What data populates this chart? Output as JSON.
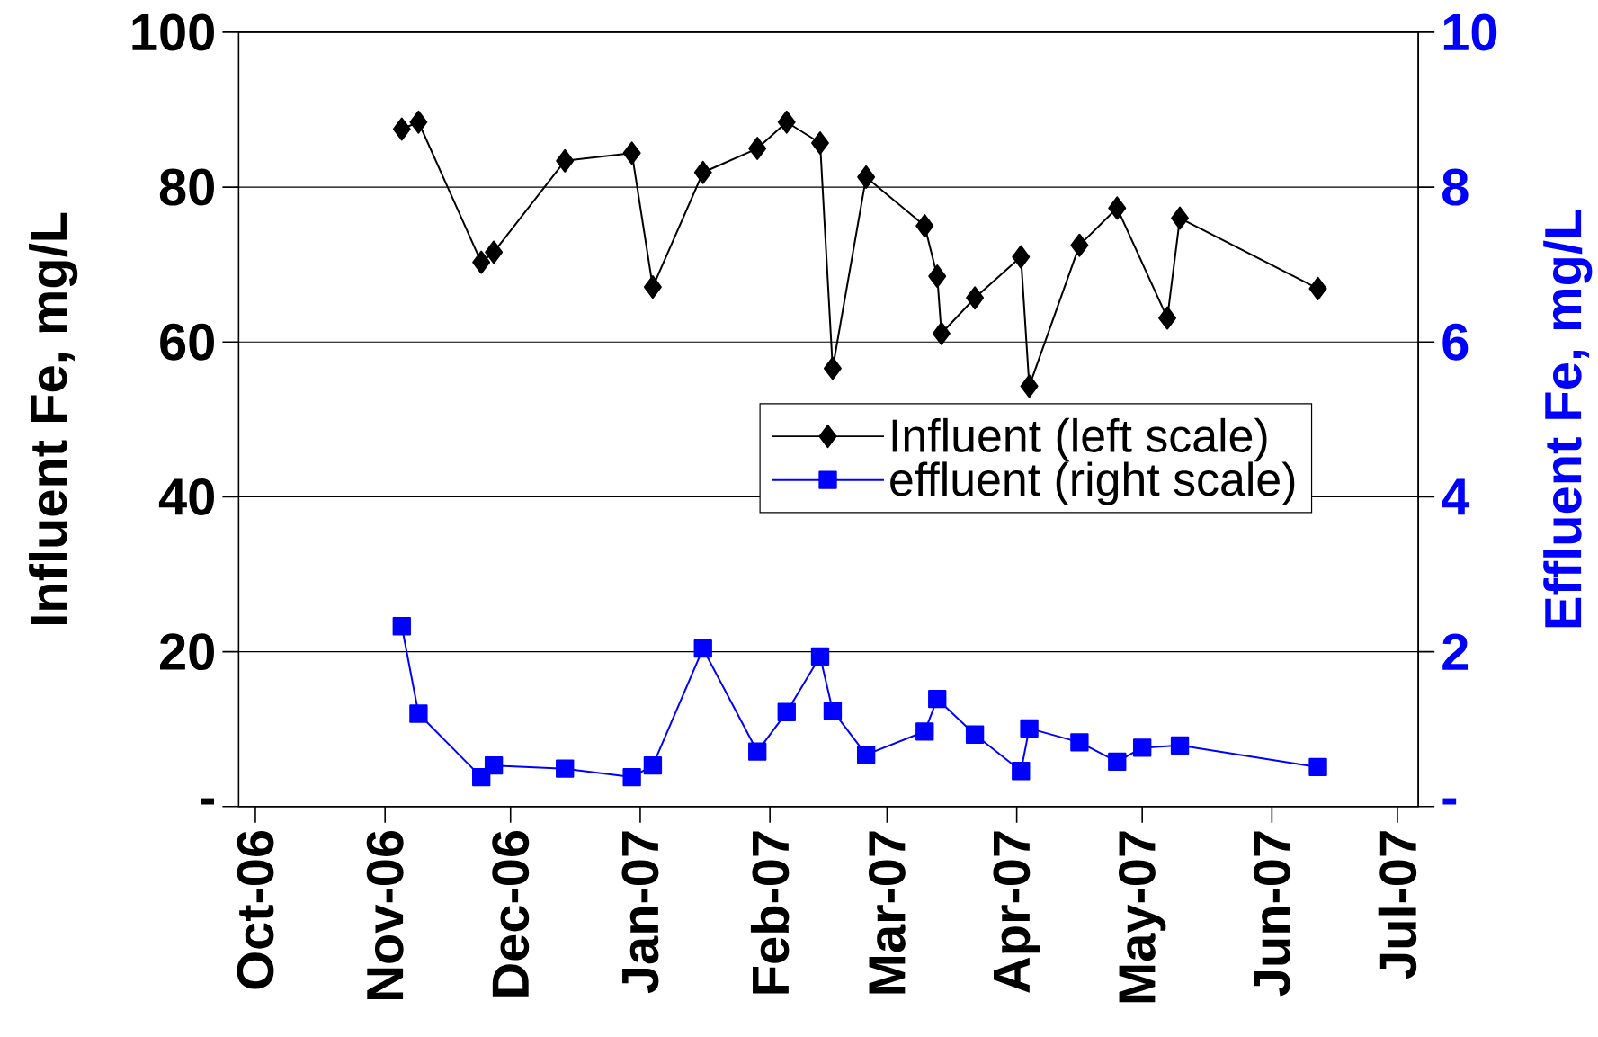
{
  "chart_data": {
    "type": "line",
    "xlabel": null,
    "ylabel": "Influent Fe, mg/L",
    "y2label": "Effluent Fe, mg/L",
    "xlim": [
      "2006-09-27",
      "2007-07-06"
    ],
    "xticks": [
      {
        "value": "2006-10-01",
        "label": "Oct-06"
      },
      {
        "value": "2006-11-01",
        "label": "Nov-06"
      },
      {
        "value": "2006-12-01",
        "label": "Dec-06"
      },
      {
        "value": "2007-01-01",
        "label": "Jan-07"
      },
      {
        "value": "2007-02-01",
        "label": "Feb-07"
      },
      {
        "value": "2007-03-01",
        "label": "Mar-07"
      },
      {
        "value": "2007-04-01",
        "label": "Apr-07"
      },
      {
        "value": "2007-05-01",
        "label": "May-07"
      },
      {
        "value": "2007-06-01",
        "label": "Jun-07"
      },
      {
        "value": "2007-07-01",
        "label": "Jul-07"
      }
    ],
    "ylim": [
      0,
      100
    ],
    "yticks": [
      {
        "value": 0,
        "label": "-"
      },
      20,
      40,
      60,
      80,
      100
    ],
    "y2lim": [
      0,
      10
    ],
    "y2ticks": [
      {
        "value": 0,
        "label": "-"
      },
      2,
      4,
      6,
      8,
      10
    ],
    "grid": "y",
    "legend": "right",
    "series": [
      {
        "name": "Influent (left scale)",
        "color": "#000000",
        "marker": "diamond",
        "axis": "y",
        "x": [
          "2006-11-05",
          "2006-11-09",
          "2006-11-24",
          "2006-11-27",
          "2006-12-14",
          "2006-12-30",
          "2007-01-04",
          "2007-01-16",
          "2007-01-29",
          "2007-02-05",
          "2007-02-13",
          "2007-02-16",
          "2007-02-24",
          "2007-03-10",
          "2007-03-13",
          "2007-03-14",
          "2007-03-22",
          "2007-04-02",
          "2007-04-04",
          "2007-04-16",
          "2007-04-25",
          "2007-05-07",
          "2007-05-10",
          "2007-06-12"
        ],
        "values": [
          87.5,
          88.4,
          70.3,
          71.6,
          83.4,
          84.4,
          67.1,
          81.9,
          85.0,
          88.4,
          85.7,
          56.6,
          81.3,
          75.0,
          68.5,
          61.1,
          65.7,
          71.0,
          54.3,
          72.5,
          77.3,
          63.1,
          76.0,
          66.9
        ]
      },
      {
        "name": "effluent (right scale)",
        "color": "#0000ff",
        "marker": "square",
        "axis": "y2",
        "x": [
          "2006-11-05",
          "2006-11-09",
          "2006-11-24",
          "2006-11-27",
          "2006-12-14",
          "2006-12-30",
          "2007-01-04",
          "2007-01-16",
          "2007-01-29",
          "2007-02-05",
          "2007-02-13",
          "2007-02-16",
          "2007-02-24",
          "2007-03-10",
          "2007-03-13",
          "2007-03-22",
          "2007-04-02",
          "2007-04-04",
          "2007-04-16",
          "2007-04-25",
          "2007-05-01",
          "2007-05-10",
          "2007-06-12"
        ],
        "values": [
          2.33,
          1.2,
          0.38,
          0.53,
          0.49,
          0.38,
          0.53,
          2.04,
          0.71,
          1.22,
          1.94,
          1.24,
          0.67,
          0.97,
          1.39,
          0.93,
          0.46,
          1.01,
          0.83,
          0.58,
          0.76,
          0.79,
          0.51
        ]
      }
    ]
  }
}
